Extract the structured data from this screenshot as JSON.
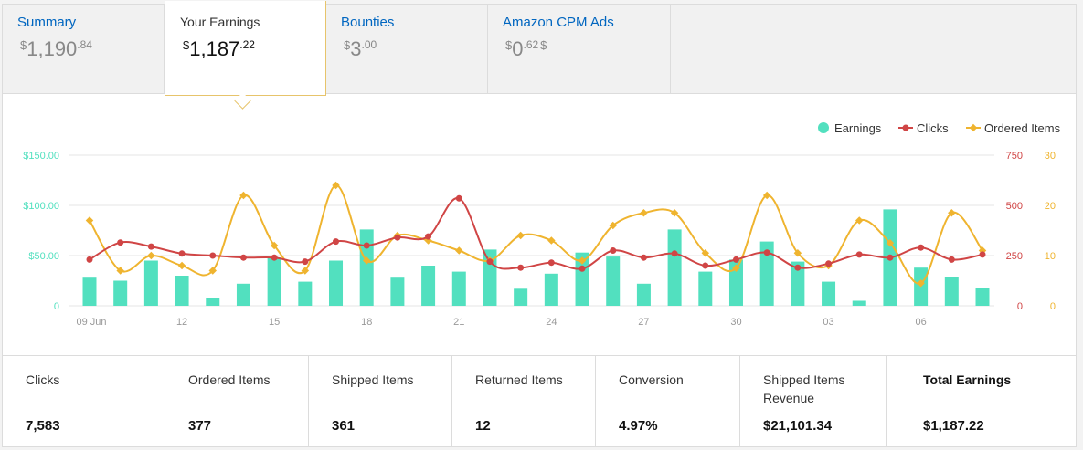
{
  "tabs": [
    {
      "title": "Summary",
      "currency": "$",
      "whole": "1,190",
      "frac": ".84",
      "suffix": "",
      "active": false
    },
    {
      "title": "Your Earnings",
      "currency": "$",
      "whole": "1,187",
      "frac": ".22",
      "suffix": "",
      "active": true
    },
    {
      "title": "Bounties",
      "currency": "$",
      "whole": "3",
      "frac": ".00",
      "suffix": "",
      "active": false
    },
    {
      "title": "Amazon CPM Ads",
      "currency": "$",
      "whole": "0",
      "frac": ".62",
      "suffix": "$",
      "active": false
    }
  ],
  "colors": {
    "earnings": "#52e0bf",
    "clicks": "#d04545",
    "ordered": "#efb42f",
    "link": "#0066c0",
    "active_border": "#e7c46b"
  },
  "chart_data": {
    "type": "bar",
    "legend": [
      "Earnings",
      "Clicks",
      "Ordered Items"
    ],
    "legend_position": "top-right",
    "x_ticks": [
      "09 Jun",
      "12",
      "15",
      "18",
      "21",
      "24",
      "27",
      "30",
      "03",
      "06"
    ],
    "x_tick_index": [
      0,
      3,
      6,
      9,
      12,
      15,
      18,
      21,
      24,
      27
    ],
    "y_left": {
      "ticks": [
        "$150.00",
        "$100.00",
        "$50.00",
        "0"
      ],
      "range": [
        0,
        150
      ]
    },
    "y_right_clicks": {
      "ticks": [
        "750",
        "500",
        "250",
        "0"
      ],
      "range": [
        0,
        750
      ]
    },
    "y_right_ordered": {
      "ticks": [
        "30",
        "20",
        "10",
        "0"
      ],
      "range": [
        0,
        30
      ]
    },
    "grid": true,
    "series": [
      {
        "name": "Earnings",
        "kind": "bar",
        "values": [
          28,
          25,
          45,
          30,
          8,
          22,
          48,
          24,
          45,
          76,
          28,
          40,
          34,
          56,
          17,
          32,
          53,
          49,
          22,
          76,
          34,
          46,
          64,
          44,
          24,
          5,
          96,
          38,
          29,
          18
        ]
      },
      {
        "name": "Clicks",
        "kind": "line",
        "values": [
          230,
          315,
          295,
          260,
          250,
          240,
          240,
          220,
          320,
          300,
          340,
          345,
          535,
          220,
          190,
          215,
          185,
          275,
          240,
          260,
          200,
          230,
          265,
          190,
          210,
          255,
          240,
          290,
          230,
          255
        ]
      },
      {
        "name": "Ordered Items",
        "kind": "line",
        "values": [
          17,
          7,
          10,
          8,
          7,
          22,
          12,
          7,
          24,
          9,
          14,
          13,
          11,
          9,
          14,
          13,
          9,
          16,
          18.5,
          18.5,
          10.5,
          7.5,
          22,
          10.5,
          8,
          17,
          12.5,
          4.5,
          18.5,
          11
        ]
      }
    ]
  },
  "summary": [
    {
      "label": "Clicks",
      "value": "7,583"
    },
    {
      "label": "Ordered Items",
      "value": "377"
    },
    {
      "label": "Shipped Items",
      "value": "361"
    },
    {
      "label": "Returned Items",
      "value": "12"
    },
    {
      "label": "Conversion",
      "value": "4.97%"
    },
    {
      "label": "Shipped Items Revenue",
      "value": "$21,101.34"
    },
    {
      "label": "Total Earnings",
      "value": "$1,187.22"
    }
  ]
}
